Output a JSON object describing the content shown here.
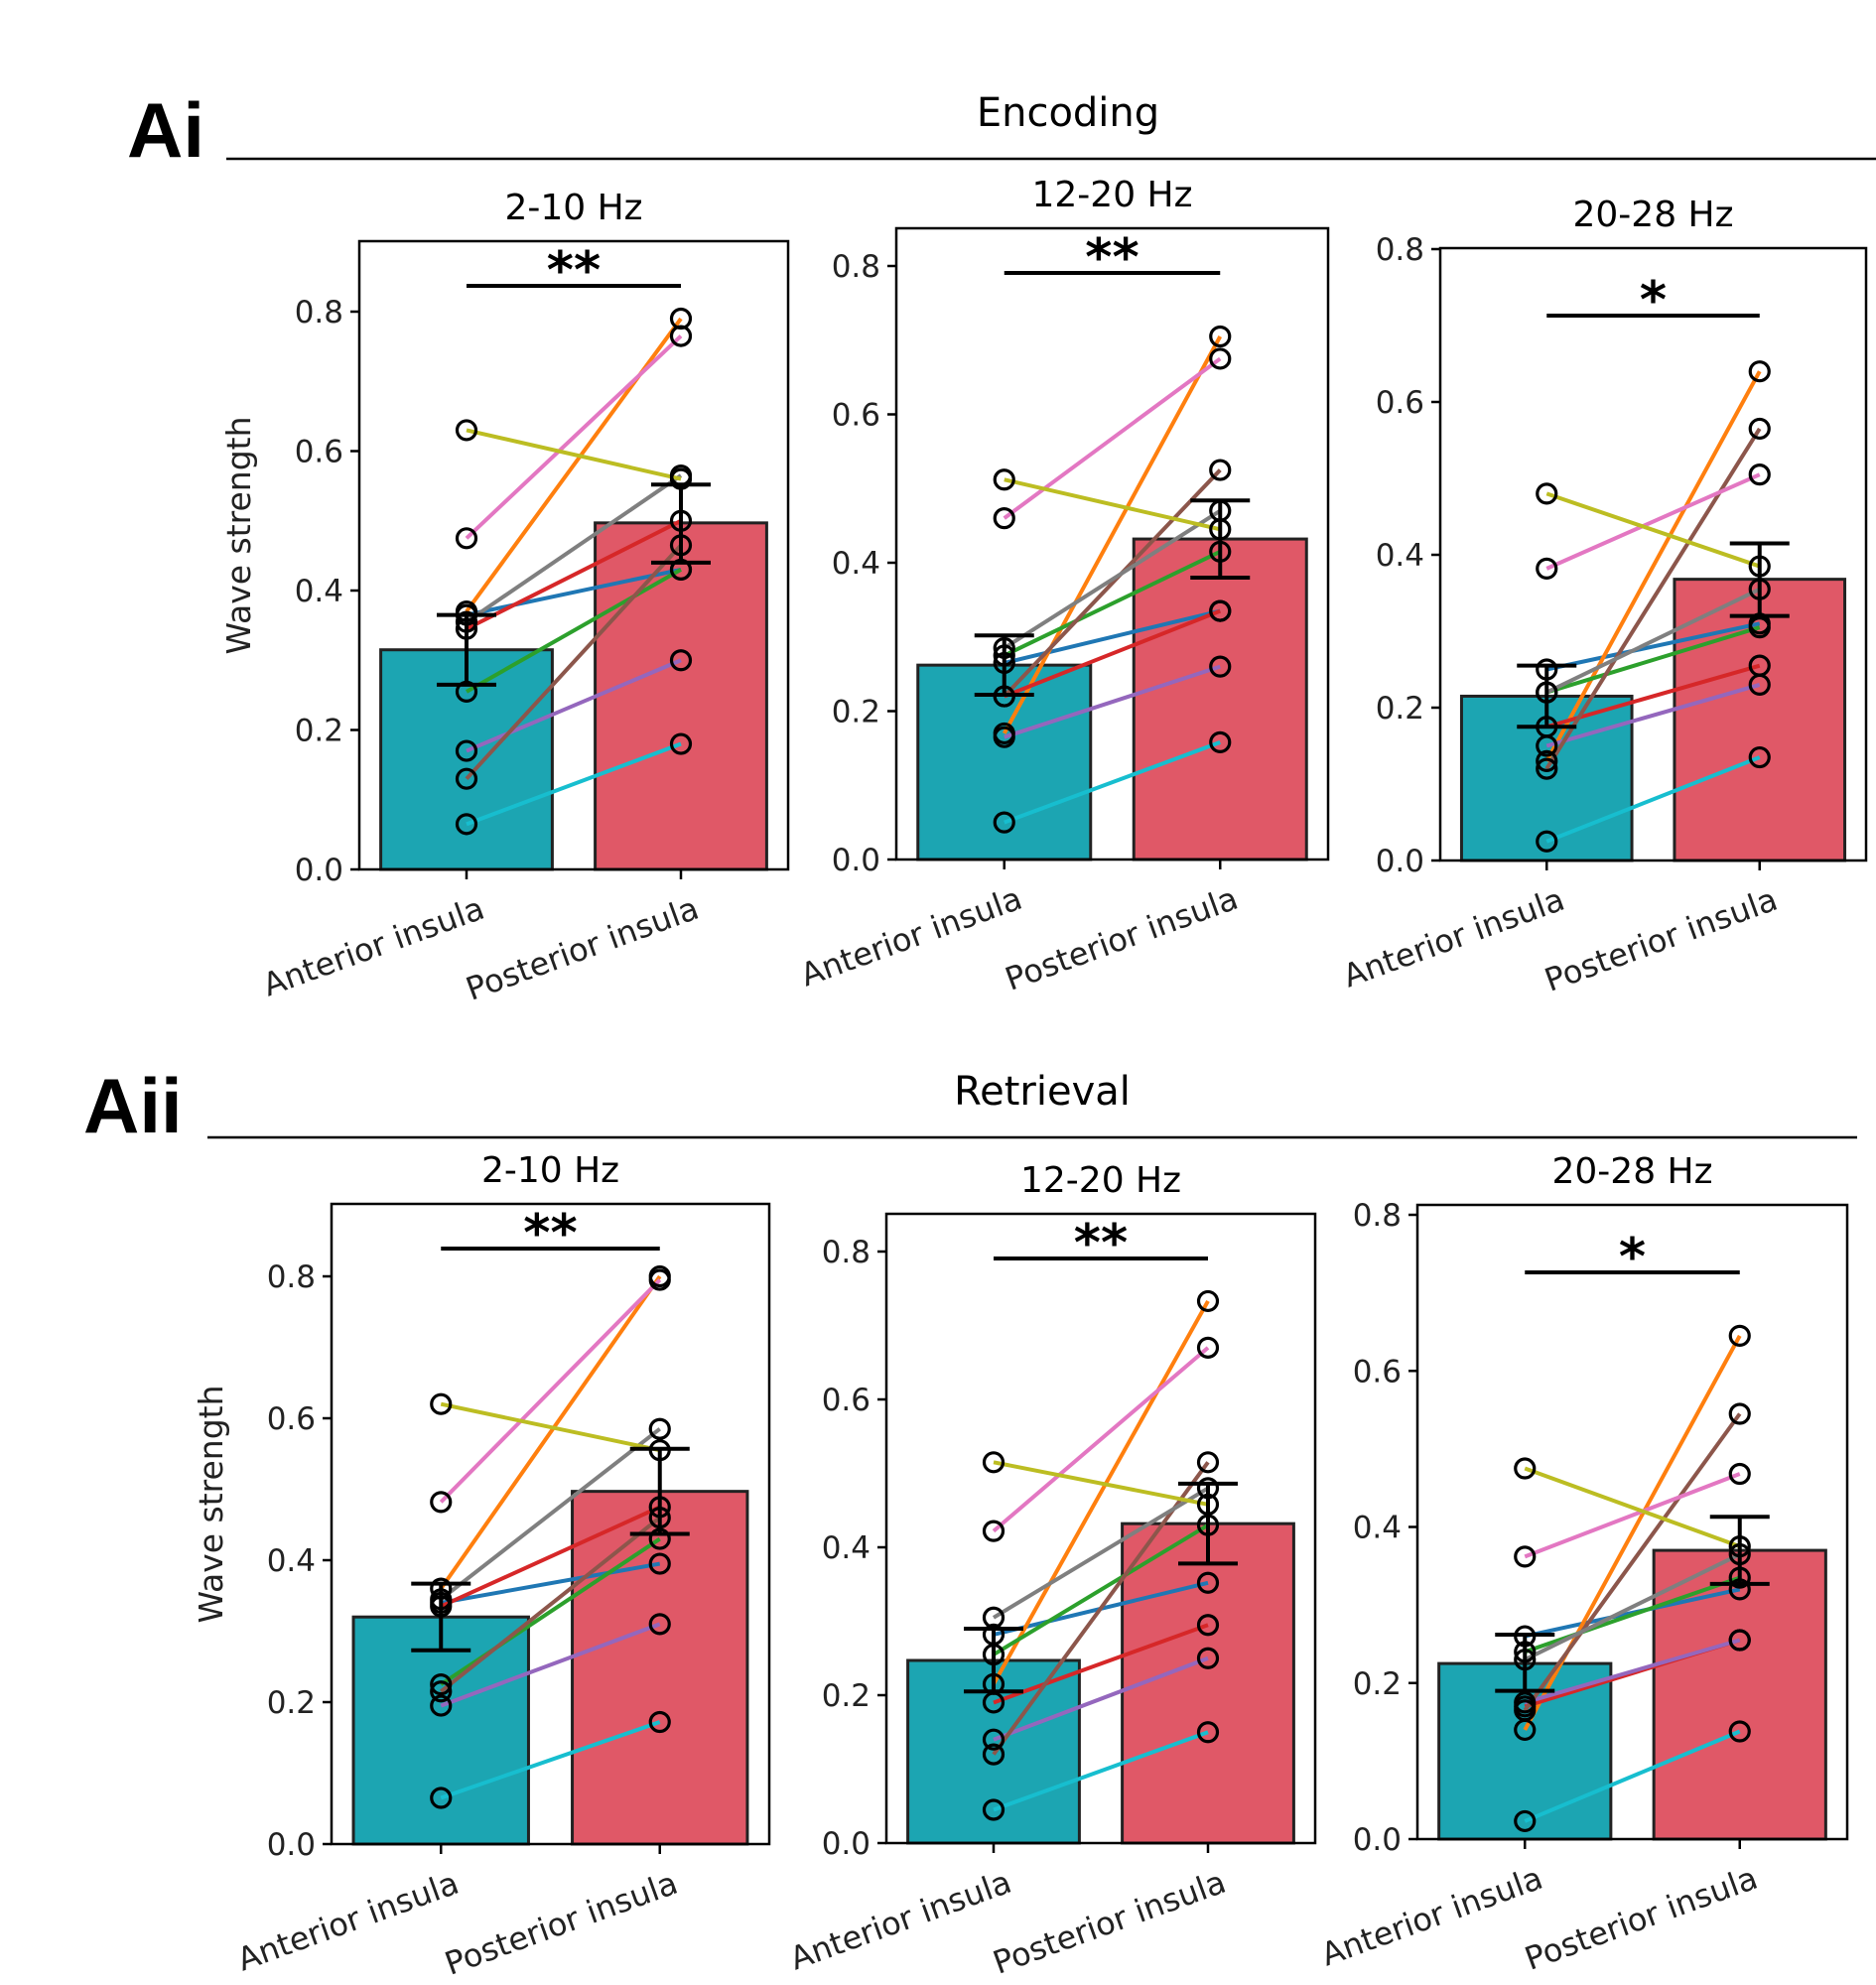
{
  "figure": {
    "sections": [
      {
        "label": "Ai",
        "title": "Encoding"
      },
      {
        "label": "Aii",
        "title": "Retrieval"
      }
    ],
    "colors": {
      "anterior_bar": "#1ca5b2",
      "posterior_bar": "#e05867",
      "subjects": [
        "#1f77b4",
        "#ff7f0e",
        "#2ca02c",
        "#d62728",
        "#9467bd",
        "#8c564b",
        "#e377c2",
        "#7f7f7f",
        "#bcbd22",
        "#17becf"
      ]
    }
  },
  "chart_data": [
    {
      "type": "bar",
      "section": "Encoding",
      "title": "2-10 Hz",
      "categories": [
        "Anterior insula",
        "Posterior insula"
      ],
      "ylabel": "Wave strength",
      "ylim": [
        0,
        0.9
      ],
      "yticks": [
        0.0,
        0.2,
        0.4,
        0.6,
        0.8
      ],
      "bar_means": [
        0.315,
        0.497
      ],
      "sem_ranges": [
        [
          0.265,
          0.365
        ],
        [
          0.44,
          0.552
        ]
      ],
      "significance": "**",
      "subjects": [
        {
          "color": "blue",
          "values": [
            0.365,
            0.43
          ]
        },
        {
          "color": "orange",
          "values": [
            0.37,
            0.79
          ]
        },
        {
          "color": "green",
          "values": [
            0.255,
            0.43
          ]
        },
        {
          "color": "red",
          "values": [
            0.345,
            0.5
          ]
        },
        {
          "color": "purple",
          "values": [
            0.17,
            0.3
          ]
        },
        {
          "color": "brown",
          "values": [
            0.13,
            0.465
          ]
        },
        {
          "color": "pink",
          "values": [
            0.475,
            0.765
          ]
        },
        {
          "color": "gray",
          "values": [
            0.355,
            0.565
          ]
        },
        {
          "color": "olive",
          "values": [
            0.63,
            0.56
          ]
        },
        {
          "color": "cyan",
          "values": [
            0.065,
            0.18
          ]
        }
      ]
    },
    {
      "type": "bar",
      "section": "Encoding",
      "title": "12-20 Hz",
      "categories": [
        "Anterior insula",
        "Posterior insula"
      ],
      "ylabel": "",
      "ylim": [
        0,
        0.85
      ],
      "yticks": [
        0.0,
        0.2,
        0.4,
        0.6,
        0.8
      ],
      "bar_means": [
        0.262,
        0.432
      ],
      "sem_ranges": [
        [
          0.222,
          0.302
        ],
        [
          0.38,
          0.484
        ]
      ],
      "significance": "**",
      "subjects": [
        {
          "color": "blue",
          "values": [
            0.265,
            0.335
          ]
        },
        {
          "color": "orange",
          "values": [
            0.17,
            0.705
          ]
        },
        {
          "color": "green",
          "values": [
            0.275,
            0.415
          ]
        },
        {
          "color": "red",
          "values": [
            0.22,
            0.335
          ]
        },
        {
          "color": "purple",
          "values": [
            0.165,
            0.26
          ]
        },
        {
          "color": "brown",
          "values": [
            0.22,
            0.525
          ]
        },
        {
          "color": "pink",
          "values": [
            0.46,
            0.675
          ]
        },
        {
          "color": "gray",
          "values": [
            0.285,
            0.47
          ]
        },
        {
          "color": "olive",
          "values": [
            0.512,
            0.445
          ]
        },
        {
          "color": "cyan",
          "values": [
            0.05,
            0.158
          ]
        }
      ]
    },
    {
      "type": "bar",
      "section": "Encoding",
      "title": "20-28 Hz",
      "categories": [
        "Anterior insula",
        "Posterior insula"
      ],
      "ylabel": "",
      "ylim": [
        0,
        0.8
      ],
      "yticks": [
        0.0,
        0.2,
        0.4,
        0.6,
        0.8
      ],
      "bar_means": [
        0.215,
        0.368
      ],
      "sem_ranges": [
        [
          0.175,
          0.255
        ],
        [
          0.32,
          0.415
        ]
      ],
      "significance": "*",
      "subjects": [
        {
          "color": "blue",
          "values": [
            0.25,
            0.31
          ]
        },
        {
          "color": "orange",
          "values": [
            0.13,
            0.64
          ]
        },
        {
          "color": "green",
          "values": [
            0.22,
            0.305
          ]
        },
        {
          "color": "red",
          "values": [
            0.175,
            0.255
          ]
        },
        {
          "color": "purple",
          "values": [
            0.15,
            0.23
          ]
        },
        {
          "color": "brown",
          "values": [
            0.12,
            0.565
          ]
        },
        {
          "color": "pink",
          "values": [
            0.382,
            0.505
          ]
        },
        {
          "color": "gray",
          "values": [
            0.22,
            0.355
          ]
        },
        {
          "color": "olive",
          "values": [
            0.48,
            0.385
          ]
        },
        {
          "color": "cyan",
          "values": [
            0.025,
            0.135
          ]
        }
      ]
    },
    {
      "type": "bar",
      "section": "Retrieval",
      "title": "2-10 Hz",
      "categories": [
        "Anterior insula",
        "Posterior insula"
      ],
      "ylabel": "Wave strength",
      "ylim": [
        0,
        0.9
      ],
      "yticks": [
        0.0,
        0.2,
        0.4,
        0.6,
        0.8
      ],
      "bar_means": [
        0.32,
        0.497
      ],
      "sem_ranges": [
        [
          0.273,
          0.367
        ],
        [
          0.437,
          0.557
        ]
      ],
      "significance": "**",
      "subjects": [
        {
          "color": "blue",
          "values": [
            0.34,
            0.395
          ]
        },
        {
          "color": "orange",
          "values": [
            0.36,
            0.8
          ]
        },
        {
          "color": "green",
          "values": [
            0.225,
            0.43
          ]
        },
        {
          "color": "red",
          "values": [
            0.335,
            0.475
          ]
        },
        {
          "color": "purple",
          "values": [
            0.195,
            0.31
          ]
        },
        {
          "color": "brown",
          "values": [
            0.215,
            0.46
          ]
        },
        {
          "color": "pink",
          "values": [
            0.482,
            0.795
          ]
        },
        {
          "color": "gray",
          "values": [
            0.345,
            0.585
          ]
        },
        {
          "color": "olive",
          "values": [
            0.62,
            0.555
          ]
        },
        {
          "color": "cyan",
          "values": [
            0.065,
            0.172
          ]
        }
      ]
    },
    {
      "type": "bar",
      "section": "Retrieval",
      "title": "12-20 Hz",
      "categories": [
        "Anterior insula",
        "Posterior insula"
      ],
      "ylabel": "",
      "ylim": [
        0,
        0.85
      ],
      "yticks": [
        0.0,
        0.2,
        0.4,
        0.6,
        0.8
      ],
      "bar_means": [
        0.247,
        0.432
      ],
      "sem_ranges": [
        [
          0.205,
          0.29
        ],
        [
          0.378,
          0.486
        ]
      ],
      "significance": "**",
      "subjects": [
        {
          "color": "blue",
          "values": [
            0.282,
            0.352
          ]
        },
        {
          "color": "orange",
          "values": [
            0.215,
            0.733
          ]
        },
        {
          "color": "green",
          "values": [
            0.255,
            0.43
          ]
        },
        {
          "color": "red",
          "values": [
            0.19,
            0.295
          ]
        },
        {
          "color": "purple",
          "values": [
            0.14,
            0.25
          ]
        },
        {
          "color": "brown",
          "values": [
            0.12,
            0.515
          ]
        },
        {
          "color": "pink",
          "values": [
            0.422,
            0.67
          ]
        },
        {
          "color": "gray",
          "values": [
            0.305,
            0.48
          ]
        },
        {
          "color": "olive",
          "values": [
            0.515,
            0.458
          ]
        },
        {
          "color": "cyan",
          "values": [
            0.045,
            0.15
          ]
        }
      ]
    },
    {
      "type": "bar",
      "section": "Retrieval",
      "title": "20-28 Hz",
      "categories": [
        "Anterior insula",
        "Posterior insula"
      ],
      "ylabel": "",
      "ylim": [
        0,
        0.8
      ],
      "yticks": [
        0.0,
        0.2,
        0.4,
        0.6,
        0.8
      ],
      "bar_means": [
        0.225,
        0.37
      ],
      "sem_ranges": [
        [
          0.19,
          0.262
        ],
        [
          0.327,
          0.413
        ]
      ],
      "significance": "*",
      "subjects": [
        {
          "color": "blue",
          "values": [
            0.26,
            0.32
          ]
        },
        {
          "color": "orange",
          "values": [
            0.14,
            0.645
          ]
        },
        {
          "color": "green",
          "values": [
            0.24,
            0.335
          ]
        },
        {
          "color": "red",
          "values": [
            0.17,
            0.255
          ]
        },
        {
          "color": "purple",
          "values": [
            0.175,
            0.255
          ]
        },
        {
          "color": "brown",
          "values": [
            0.165,
            0.545
          ]
        },
        {
          "color": "pink",
          "values": [
            0.362,
            0.468
          ]
        },
        {
          "color": "gray",
          "values": [
            0.23,
            0.365
          ]
        },
        {
          "color": "olive",
          "values": [
            0.475,
            0.375
          ]
        },
        {
          "color": "cyan",
          "values": [
            0.023,
            0.138
          ]
        }
      ]
    }
  ]
}
